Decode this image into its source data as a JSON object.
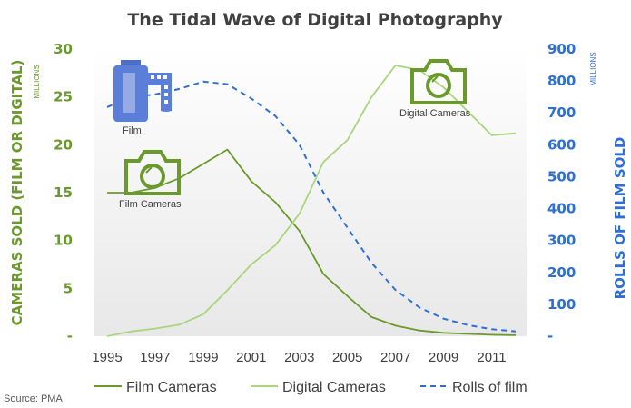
{
  "chart_data": {
    "type": "line",
    "title": "The Tidal Wave of Digital Photography",
    "ylabel": "CAMERAS SOLD (FILM OR DIGITAL)",
    "ylabel_unit": "MILLIONS",
    "y2label": "ROLLS OF FILM SOLD",
    "y2label_unit": "MILLIONS",
    "ylim": [
      0,
      30
    ],
    "y2lim": [
      0,
      900
    ],
    "x_ticks": [
      "1995",
      "1997",
      "1999",
      "2001",
      "2003",
      "2005",
      "2007",
      "2009",
      "2011"
    ],
    "y_ticks": [
      "-",
      "5",
      "10",
      "15",
      "20",
      "25",
      "30"
    ],
    "y2_ticks": [
      "-",
      "100",
      "200",
      "300",
      "400",
      "500",
      "600",
      "700",
      "800",
      "900"
    ],
    "x": [
      1995,
      1996,
      1997,
      1998,
      1999,
      2000,
      2001,
      2002,
      2003,
      2004,
      2005,
      2006,
      2007,
      2008,
      2009,
      2010,
      2011,
      2012
    ],
    "series": [
      {
        "name": "Film Cameras",
        "axis": "left",
        "style": "solid",
        "color": "#6b9a2c",
        "values": [
          15,
          15,
          15.5,
          16.5,
          18,
          19.5,
          16.2,
          14,
          11,
          6.5,
          4.2,
          2,
          1.1,
          0.6,
          0.35,
          0.25,
          0.15,
          0.1
        ]
      },
      {
        "name": "Digital Cameras",
        "axis": "left",
        "style": "solid",
        "color": "#a9d67c",
        "values": [
          0,
          0.5,
          0.8,
          1.2,
          2.3,
          4.8,
          7.5,
          9.5,
          12.8,
          18.2,
          20.5,
          25,
          28.3,
          27.8,
          26,
          23.5,
          21,
          21.2
        ]
      },
      {
        "name": "Rolls of film",
        "axis": "right",
        "style": "dashed",
        "color": "#2e6fd6",
        "values": [
          718,
          750,
          758,
          775,
          798,
          790,
          745,
          690,
          600,
          450,
          340,
          230,
          145,
          90,
          55,
          35,
          22,
          15
        ]
      }
    ],
    "legend_position": "bottom",
    "grid": false,
    "annotations": [
      {
        "label": "Film",
        "icon": "film-roll-icon"
      },
      {
        "label": "Film Cameras",
        "icon": "camera-icon"
      },
      {
        "label": "Digital Cameras",
        "icon": "camera-icon"
      }
    ],
    "source": "Source: PMA"
  }
}
